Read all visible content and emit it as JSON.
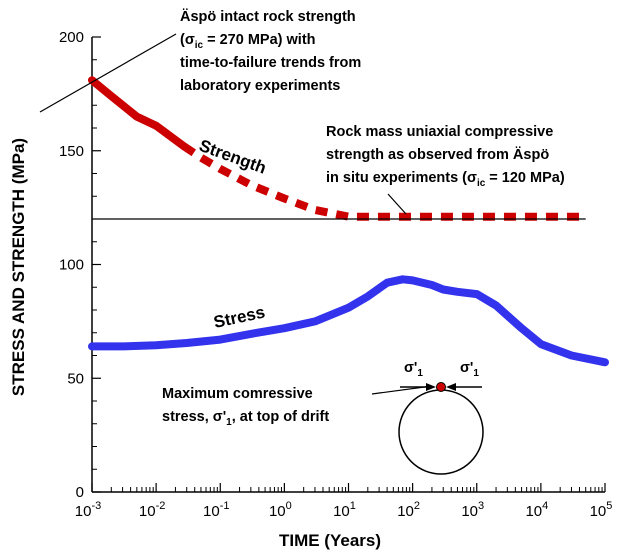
{
  "chart_data": {
    "type": "line",
    "xlabel": "TIME (Years)",
    "ylabel": "STRESS AND STRENGTH (MPa)",
    "xscale": "log",
    "xlim": [
      0.001,
      100000
    ],
    "ylim": [
      0,
      200
    ],
    "x_ticks": [
      {
        "value": 0.001,
        "base": "10",
        "exp": "-3"
      },
      {
        "value": 0.01,
        "base": "10",
        "exp": "-2"
      },
      {
        "value": 0.1,
        "base": "10",
        "exp": "-1"
      },
      {
        "value": 1,
        "base": "10",
        "exp": "0"
      },
      {
        "value": 10,
        "base": "10",
        "exp": "1"
      },
      {
        "value": 100,
        "base": "10",
        "exp": "2"
      },
      {
        "value": 1000,
        "base": "10",
        "exp": "3"
      },
      {
        "value": 10000,
        "base": "10",
        "exp": "4"
      },
      {
        "value": 100000,
        "base": "10",
        "exp": "5"
      }
    ],
    "y_ticks": [
      {
        "value": 0,
        "label": "0"
      },
      {
        "value": 50,
        "label": "50"
      },
      {
        "value": 100,
        "label": "100"
      },
      {
        "value": 150,
        "label": "150"
      },
      {
        "value": 200,
        "label": "200"
      }
    ],
    "grid": false,
    "series": [
      {
        "name": "Strength",
        "color": "#cc0000",
        "style": "solid",
        "x": [
          0.001,
          0.002,
          0.005,
          0.01,
          0.027
        ],
        "y": [
          181,
          174,
          165,
          161,
          152
        ]
      },
      {
        "name": "Strength",
        "color": "#cc0000",
        "style": "dashed",
        "x": [
          0.027,
          0.05,
          0.1,
          0.3,
          1,
          3,
          10,
          30,
          100,
          1000,
          10000,
          50000
        ],
        "y": [
          152,
          147,
          142,
          135,
          129,
          124,
          121,
          121,
          121,
          121,
          121,
          121
        ]
      },
      {
        "name": "Stress",
        "color": "#3333ee",
        "style": "solid",
        "x": [
          0.001,
          0.003,
          0.01,
          0.03,
          0.1,
          0.3,
          1,
          3,
          10,
          20,
          40,
          70,
          100,
          200,
          300,
          500,
          1000,
          2000,
          5000,
          10000,
          30000,
          100000
        ],
        "y": [
          64,
          64,
          64.5,
          65.5,
          67,
          69.5,
          72,
          75,
          81,
          86,
          92,
          93.5,
          93,
          91,
          89,
          88,
          87,
          82,
          72,
          65,
          60,
          57
        ]
      },
      {
        "name": "",
        "color": "#000000",
        "style": "thin",
        "x": [
          0.001,
          50000
        ],
        "y": [
          120,
          120
        ]
      }
    ],
    "curve_labels": {
      "strength": "Strength",
      "stress": "Stress"
    },
    "annotations": {
      "intact_strength": {
        "line1": "Äspö intact rock strength",
        "line2_pre": "(σ",
        "line2_sub": "ic",
        "line2_post": " = 270 MPa) with",
        "line3": "time-to-failure trends from",
        "line4": "laboratory experiments"
      },
      "rock_mass": {
        "line1": "Rock mass uniaxial compressive",
        "line2": "strength as observed from Äspö",
        "line3_pre": "in situ experiments (σ",
        "line3_sub": "ic",
        "line3_post": " = 120 MPa)"
      },
      "max_stress": {
        "line1": "Maximum comressive",
        "line2_pre": "stress, σ'",
        "line2_sub": "1",
        "line2_post": ", at top of drift"
      },
      "sigma_label": {
        "pre": "σ'",
        "sub": "1"
      }
    }
  }
}
